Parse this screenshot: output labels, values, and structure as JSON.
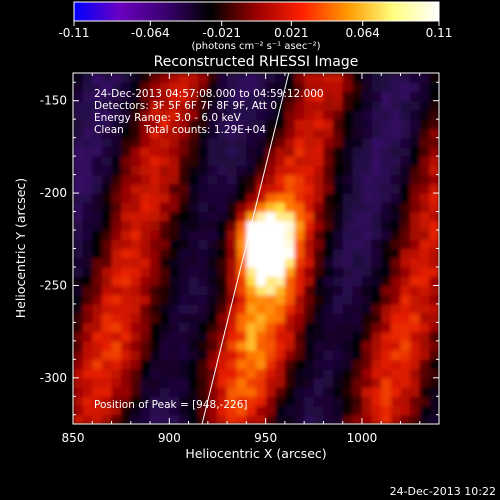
{
  "chart_data": {
    "type": "heatmap",
    "title": "Reconstructed RHESSI Image",
    "xlabel": "Heliocentric X (arcsec)",
    "ylabel": "Heliocentric Y (arcsec)",
    "xlim": [
      850,
      1040
    ],
    "ylim": [
      -325,
      -135
    ],
    "x_ticks": [
      850,
      900,
      950,
      1000
    ],
    "y_ticks": [
      -150,
      -200,
      -250,
      -300
    ],
    "x_tick_labels": [
      "850",
      "900",
      "950",
      "1000"
    ],
    "y_tick_labels": [
      "-150",
      "-200",
      "-250",
      "-300"
    ],
    "grid": false,
    "colorbar": {
      "range": [
        -0.11,
        0.11
      ],
      "ticks": [
        -0.11,
        -0.064,
        -0.021,
        0.021,
        0.064,
        0.11
      ],
      "tick_labels": [
        "-0.11",
        "-0.064",
        "-0.021",
        "0.021",
        "0.064",
        "0.11"
      ],
      "units": "(photons cm⁻² s⁻¹ asec⁻²)",
      "colors": [
        "#0000ff",
        "#6a00c0",
        "#3a0070",
        "#000000",
        "#9a0000",
        "#ff2000",
        "#ff9a00",
        "#ffff80",
        "#ffffff"
      ]
    },
    "annotations": {
      "time_range": "24-Dec-2013 04:57:08.000 to 04:59:12.000",
      "detectors": "Detectors: 3F 5F 6F 7F 8F 9F, Att 0",
      "energy_range": "Energy Range: 3.0 - 6.0 keV",
      "clean_label": "Clean",
      "total_counts": "Total counts: 1.29E+04",
      "peak_position": "Position of Peak = [948,-226]"
    },
    "peak": {
      "x": 948,
      "y": -226
    },
    "limb_line": [
      [
        917,
        -325
      ],
      [
        962,
        -135
      ]
    ]
  },
  "footer_timestamp": "24-Dec-2013 10:22"
}
